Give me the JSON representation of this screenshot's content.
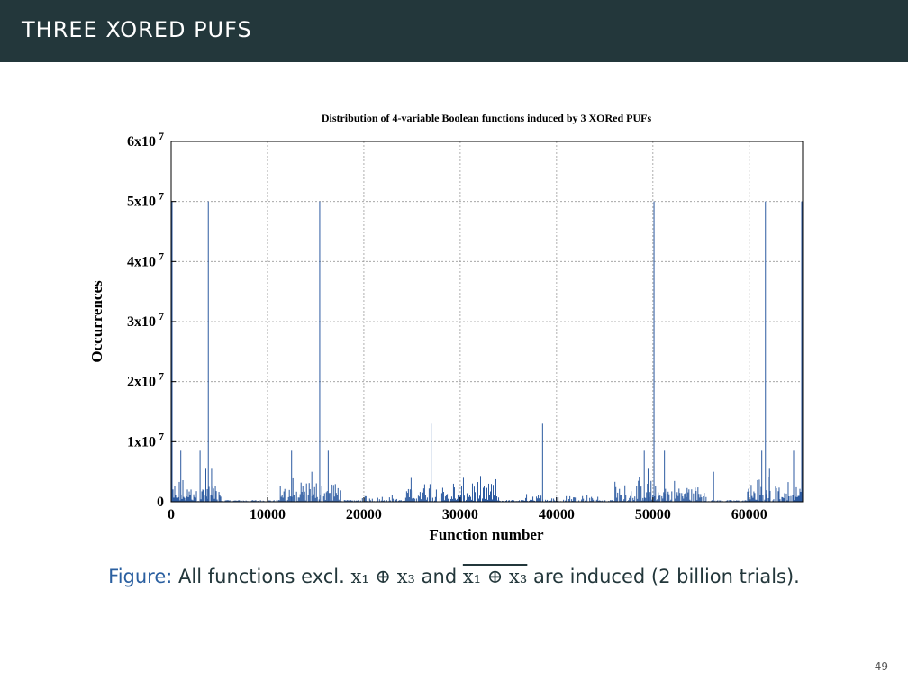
{
  "slide": {
    "title": "THREE XORED PUFS",
    "page_number": "49"
  },
  "caption": {
    "label": "Figure:",
    "text_before": " All functions excl. ",
    "expr1": "x₁ ⊕ x₃",
    "text_mid": " and ",
    "expr2": "x₁ ⊕ x₃",
    "text_after": " are induced (2 billion trials)."
  },
  "colors": {
    "header_bg": "#23373b",
    "series": "#2c5aa0",
    "grid": "#9a9a9a"
  },
  "chart_data": {
    "type": "bar",
    "title": "Distribution of 4-variable Boolean functions induced by 3 XORed PUFs",
    "xlabel": "Function number",
    "ylabel": "Occurrences",
    "xlim": [
      0,
      65536
    ],
    "ylim": [
      0,
      60000000
    ],
    "xticks": [
      0,
      10000,
      20000,
      30000,
      40000,
      50000,
      60000
    ],
    "xtick_labels": [
      "0",
      "10000",
      "20000",
      "30000",
      "40000",
      "50000",
      "60000"
    ],
    "yticks": [
      0,
      10000000,
      20000000,
      30000000,
      40000000,
      50000000,
      60000000
    ],
    "ytick_labels": [
      "0",
      "1x10 7",
      "2x10 7",
      "3x10 7",
      "4x10 7",
      "5x10 7",
      "6x10 7"
    ],
    "grid": true,
    "legend": "none",
    "peaks": {
      "x": [
        0,
        3855,
        15420,
        26985,
        38550,
        50115,
        61680,
        65535,
        1000,
        3000,
        3600,
        4200,
        12500,
        14600,
        16300,
        49100,
        49500,
        51200,
        56300,
        61300,
        62100,
        64600
      ],
      "y": [
        50000000,
        50000000,
        50000000,
        13000000,
        13000000,
        50000000,
        50000000,
        50000000,
        8500000,
        8500000,
        5500000,
        5500000,
        8500000,
        5000000,
        8500000,
        8500000,
        5500000,
        8500000,
        5000000,
        8500000,
        5500000,
        8500000
      ]
    }
  }
}
